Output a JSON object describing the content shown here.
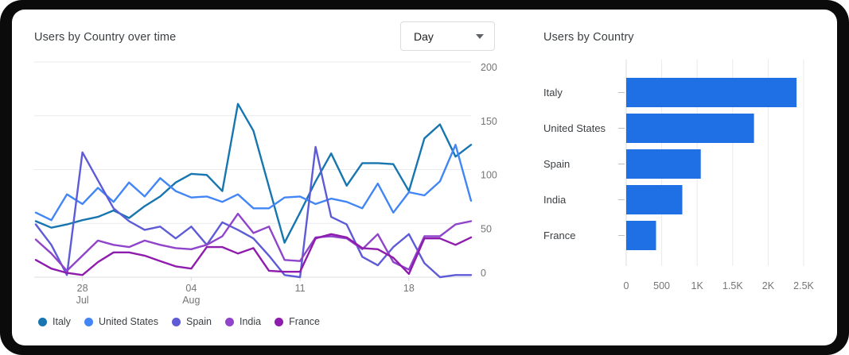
{
  "line_panel": {
    "title": "Users by Country over time",
    "interval_dropdown": {
      "value": "Day"
    }
  },
  "bar_panel": {
    "title": "Users by Country"
  },
  "chart_data": [
    {
      "type": "line",
      "title": "Users by Country over time",
      "ylim": [
        0,
        200
      ],
      "y_ticks": [
        0,
        50,
        100,
        150,
        200
      ],
      "y_axis_side": "right",
      "grid": "horizontal",
      "legend_position": "bottom",
      "x_point_count": 29,
      "x_ticks": [
        {
          "index": 3,
          "label": "28",
          "sublabel": "Jul"
        },
        {
          "index": 10,
          "label": "04",
          "sublabel": "Aug"
        },
        {
          "index": 17,
          "label": "11",
          "sublabel": ""
        },
        {
          "index": 24,
          "label": "18",
          "sublabel": ""
        }
      ],
      "series": [
        {
          "name": "Italy",
          "color": "#1775b0",
          "values": [
            52,
            46,
            49,
            53,
            56,
            62,
            55,
            66,
            75,
            88,
            96,
            95,
            80,
            161,
            136,
            84,
            32,
            60,
            89,
            115,
            85,
            106,
            106,
            105,
            80,
            129,
            142,
            112,
            123
          ]
        },
        {
          "name": "United States",
          "color": "#4285f4",
          "values": [
            60,
            53,
            77,
            68,
            83,
            70,
            88,
            75,
            92,
            80,
            74,
            75,
            70,
            77,
            64,
            64,
            74,
            75,
            68,
            73,
            70,
            64,
            87,
            60,
            79,
            76,
            89,
            123,
            71
          ]
        },
        {
          "name": "Spain",
          "color": "#5e5bd7",
          "values": [
            49,
            30,
            2,
            116,
            90,
            64,
            52,
            44,
            47,
            36,
            47,
            30,
            51,
            44,
            36,
            20,
            2,
            0,
            121,
            56,
            49,
            19,
            11,
            28,
            40,
            13,
            0,
            2,
            2
          ]
        },
        {
          "name": "India",
          "color": "#8f44c9",
          "values": [
            35,
            22,
            6,
            20,
            34,
            30,
            28,
            34,
            30,
            27,
            26,
            30,
            38,
            59,
            41,
            47,
            16,
            15,
            37,
            38,
            36,
            26,
            40,
            14,
            7,
            38,
            38,
            49,
            52
          ]
        },
        {
          "name": "France",
          "color": "#8e1cac",
          "values": [
            16,
            8,
            4,
            2,
            14,
            23,
            23,
            20,
            15,
            10,
            8,
            28,
            28,
            22,
            27,
            6,
            5,
            5,
            36,
            40,
            37,
            27,
            26,
            18,
            3,
            36,
            36,
            30,
            37
          ]
        }
      ]
    },
    {
      "type": "bar",
      "orientation": "horizontal",
      "title": "Users by Country",
      "categories": [
        "Italy",
        "United States",
        "Spain",
        "India",
        "France"
      ],
      "values": [
        2400,
        1800,
        1050,
        790,
        420
      ],
      "bar_color": "#1f70e5",
      "xlim": [
        0,
        2500
      ],
      "x_ticks": [
        "0",
        "500",
        "1K",
        "1.5K",
        "2K",
        "2.5K"
      ],
      "x_tick_values": [
        0,
        500,
        1000,
        1500,
        2000,
        2500
      ],
      "grid": "vertical"
    }
  ]
}
